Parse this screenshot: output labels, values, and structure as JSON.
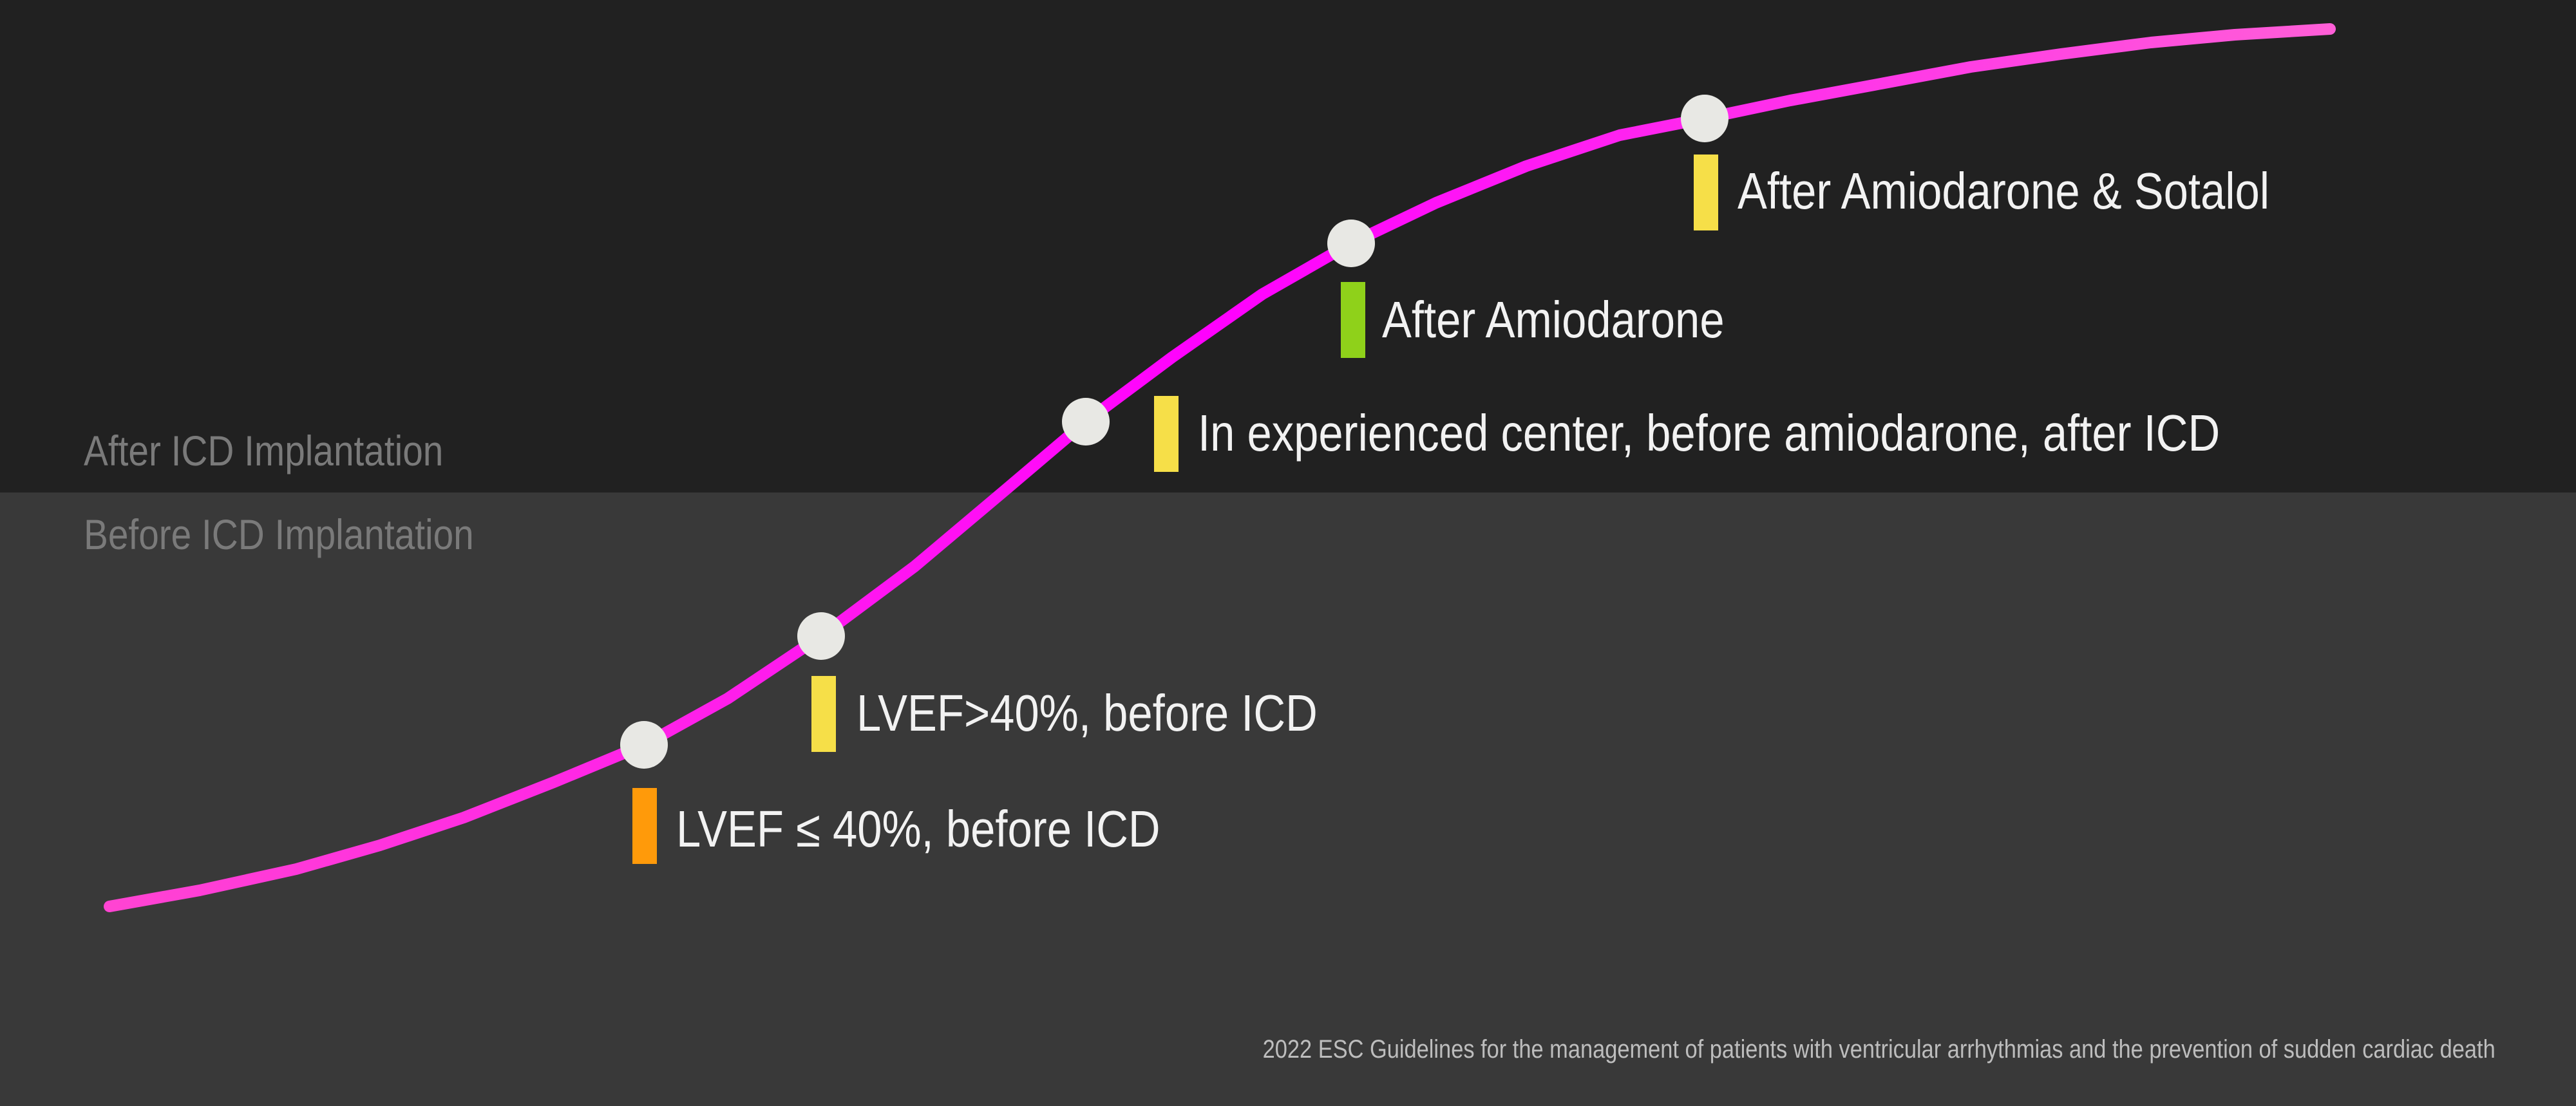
{
  "zones": {
    "after_label": "After ICD Implantation",
    "before_label": "Before ICD Implantation"
  },
  "colors": {
    "background_top": "#212121",
    "background_bottom": "#393939",
    "curve_start": "#ff44d2",
    "curve_mid": "#ff00ff",
    "curve_end": "#ff5ed7",
    "node_fill": "#e8e8e4",
    "orange": "#ff9a0a",
    "yellow": "#f6df48",
    "green": "#8fd11a"
  },
  "milestones": [
    {
      "label": "LVEF ≤ 40%, before ICD",
      "marker_color": "#ff9a0a"
    },
    {
      "label": "LVEF>40%, before ICD",
      "marker_color": "#f6df48"
    },
    {
      "label": "In experienced center, before amiodarone, after ICD",
      "marker_color": "#f6df48"
    },
    {
      "label": "After Amiodarone",
      "marker_color": "#8fd11a"
    },
    {
      "label": "After Amiodarone & Sotalol",
      "marker_color": "#f6df48"
    }
  ],
  "footnote": "2022 ESC Guidelines for the management of patients with ventricular arrhythmias and the prevention of sudden cardiac death"
}
